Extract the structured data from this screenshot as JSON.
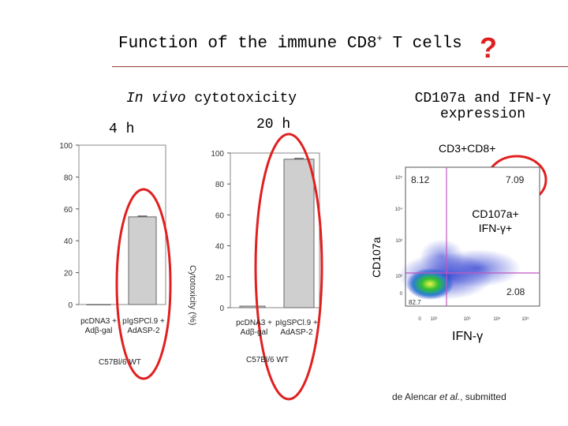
{
  "slide": {
    "title_pre": "Function of the immune CD8",
    "title_sup": "+",
    "title_post": " T cells",
    "question_mark": "?"
  },
  "left_section": {
    "heading_italic": "In vivo",
    "heading_rest": " cytotoxicity",
    "time_4h": "4 h",
    "time_20h": "20 h",
    "y_axis_label": "Cytotoxicity (%)",
    "group_label": "C57Bl/6 WT"
  },
  "right_section": {
    "heading_line1": "CD107a and IFN-γ",
    "heading_line2": "expression",
    "gate_label": "CD3+CD8+",
    "y_axis_label": "CD107a",
    "x_axis_label": "IFN-γ",
    "quadrant_upper_left": "8.12",
    "quadrant_upper_right": "7.09",
    "quadrant_lower_right": "2.08",
    "quadrant_lower_left": "82.7",
    "callout_line1": "CD107a+",
    "callout_line2": "IFN-γ+",
    "y_ticks": [
      "10⁵",
      "10⁴",
      "10³",
      "10²",
      "0"
    ],
    "x_ticks": [
      "0",
      "10²",
      "10³",
      "10⁴",
      "10⁵"
    ]
  },
  "citation": {
    "authors": "de Alencar ",
    "etal": "et al.",
    "rest": ", submitted"
  },
  "chart_data": [
    {
      "type": "bar",
      "title": "4 h",
      "categories": [
        "pcDNA3 + Adβ-gal",
        "pIgSPCl.9 + AdASP-2"
      ],
      "values": [
        0,
        55
      ],
      "ylim": [
        0,
        100
      ],
      "yticks": [
        0,
        20,
        40,
        60,
        80,
        100
      ],
      "ylabel": "Cytotoxicity (%)"
    },
    {
      "type": "bar",
      "title": "20 h",
      "categories": [
        "pcDNA3 + Adβ-gal",
        "pIgSPCl.9 + AdASP-2"
      ],
      "values": [
        1,
        96
      ],
      "ylim": [
        0,
        100
      ],
      "yticks": [
        0,
        20,
        40,
        60,
        80,
        100
      ],
      "ylabel": "Cytotoxicity (%)"
    }
  ],
  "colors": {
    "highlight": "#e02020",
    "rule": "#9a3a3a",
    "bar_fill": "#cfcfcf",
    "flow_dense": "#30c030",
    "flow_sparse": "#2a3ad0"
  }
}
